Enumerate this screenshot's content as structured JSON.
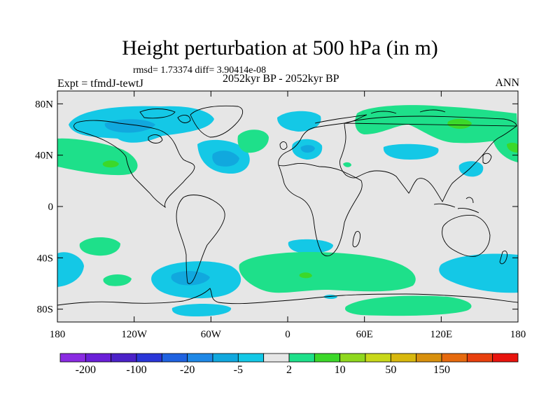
{
  "title": "Height perturbation at 500 hPa (in m)",
  "stats": "rmsd= 1.73374  diff= 3.90414e-08",
  "experiment": "Expt = tfmdJ-tewtJ",
  "period": "2052kyr BP - 2052kyr BP",
  "season": "ANN",
  "x_ticks": [
    {
      "lon": -180,
      "label": "180"
    },
    {
      "lon": -120,
      "label": "120W"
    },
    {
      "lon": -60,
      "label": "60W"
    },
    {
      "lon": 0,
      "label": "0"
    },
    {
      "lon": 60,
      "label": "60E"
    },
    {
      "lon": 120,
      "label": "120E"
    },
    {
      "lon": 180,
      "label": "180"
    }
  ],
  "y_ticks": [
    {
      "lat": 80,
      "label": "80N"
    },
    {
      "lat": 40,
      "label": "40N"
    },
    {
      "lat": 0,
      "label": "0"
    },
    {
      "lat": -40,
      "label": "40S"
    },
    {
      "lat": -80,
      "label": "80S"
    }
  ],
  "colorbar": {
    "colors": [
      "#8a2be2",
      "#6a1fd8",
      "#4b22c8",
      "#2a36d8",
      "#1f62e0",
      "#1f88e6",
      "#11a8de",
      "#14c8e6",
      "#e6e6e6",
      "#1ee08a",
      "#3cd82a",
      "#8fd81e",
      "#c8d81a",
      "#d8b80e",
      "#d8900e",
      "#e66a0e",
      "#e8400e",
      "#e8140e"
    ],
    "labels": [
      {
        "boundary": 1,
        "text": "-200"
      },
      {
        "boundary": 3,
        "text": "-100"
      },
      {
        "boundary": 5,
        "text": "-20"
      },
      {
        "boundary": 7,
        "text": "-5"
      },
      {
        "boundary": 9,
        "text": "2"
      },
      {
        "boundary": 11,
        "text": "10"
      },
      {
        "boundary": 13,
        "text": "50"
      },
      {
        "boundary": 15,
        "text": "150"
      }
    ]
  }
}
